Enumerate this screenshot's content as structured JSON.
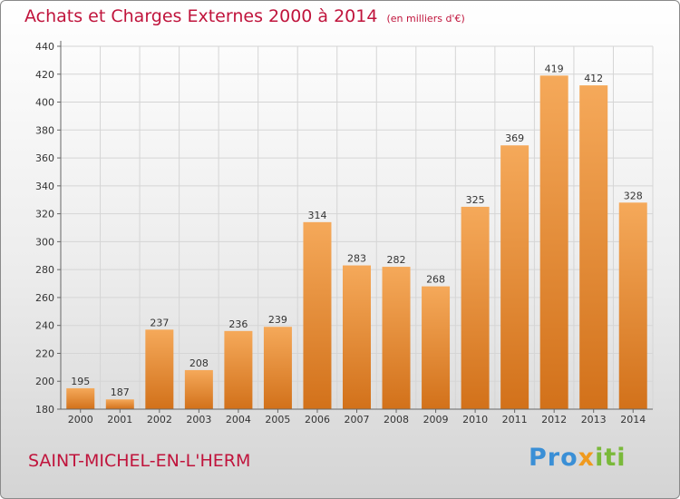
{
  "title": "Achats et Charges Externes 2000 à 2014",
  "subtitle": "(en milliers d'€)",
  "location": "SAINT-MICHEL-EN-L'HERM",
  "logo": {
    "part1": "Pro",
    "part2": "x",
    "part3": "iti"
  },
  "colors": {
    "title": "#c0143c",
    "bar_top": "#f5a95a",
    "bar_bottom": "#d2711a",
    "grid": "#d5d5d5"
  },
  "chart_data": {
    "type": "bar",
    "categories": [
      "2000",
      "2001",
      "2002",
      "2003",
      "2004",
      "2005",
      "2006",
      "2007",
      "2008",
      "2009",
      "2010",
      "2011",
      "2012",
      "2013",
      "2014"
    ],
    "values": [
      195,
      187,
      237,
      208,
      236,
      239,
      314,
      283,
      282,
      268,
      325,
      369,
      419,
      412,
      328
    ],
    "data_labels": [
      "195",
      "187",
      "237",
      "208",
      "236",
      "239",
      "314",
      "283",
      "282",
      "268",
      "325",
      "369",
      "419",
      "412",
      "328"
    ],
    "ylim": [
      180,
      440
    ],
    "yticks": [
      180,
      200,
      220,
      240,
      260,
      280,
      300,
      320,
      340,
      360,
      380,
      400,
      420,
      440
    ],
    "grid": true,
    "xlabel": "",
    "ylabel": ""
  }
}
